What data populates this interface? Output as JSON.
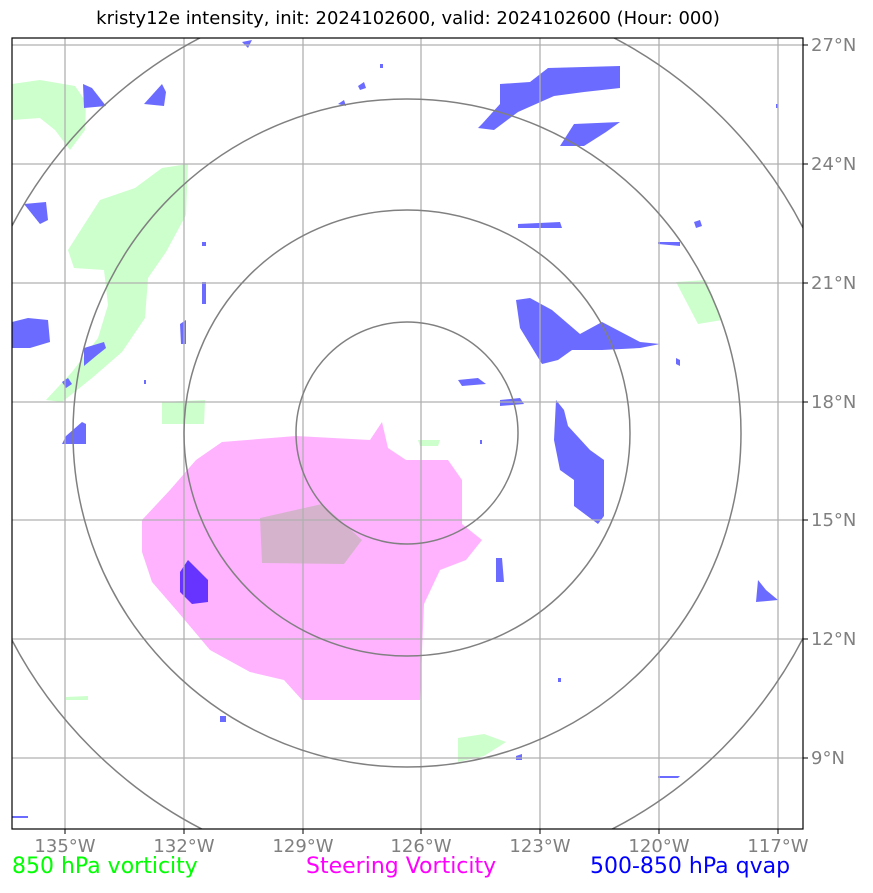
{
  "title": "kristy12e intensity, init: 2024102600, valid: 2024102600 (Hour: 000)",
  "axes": {
    "lon_labels": [
      "135°W",
      "132°W",
      "129°W",
      "126°W",
      "123°W",
      "120°W",
      "117°W"
    ],
    "lat_labels": [
      "27°N",
      "24°N",
      "21°N",
      "18°N",
      "15°N",
      "12°N",
      "9°N"
    ]
  },
  "legend": {
    "vort850": {
      "label": "850 hPa vorticity",
      "color": "#00ff00"
    },
    "steering": {
      "label": "Steering Vorticity",
      "color": "#ff00ff"
    },
    "qvap": {
      "label": "500-850 hPa qvap",
      "color": "#0000ff"
    }
  },
  "colors": {
    "grid": "#b0b0b0",
    "range_rings": "#808080",
    "vort850_fill": "#ccffcc",
    "steering_fill": "#ffb3ff",
    "qvap_fill": "#6666ff",
    "overlap_fill": "#d6b3cc"
  }
}
